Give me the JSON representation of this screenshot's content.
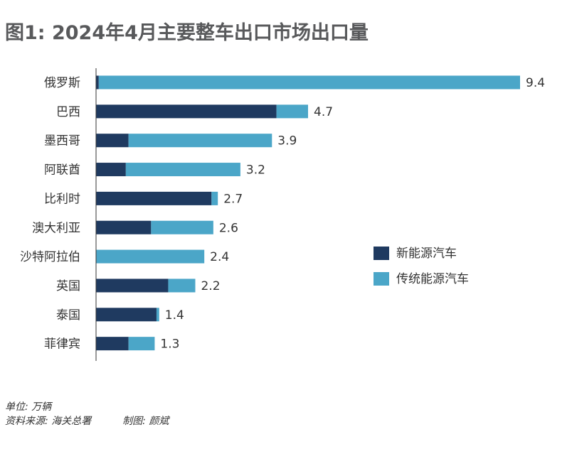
{
  "title": "图1: 2024年4月主要整车出口市场出口量",
  "unit_note": "单位: 万辆",
  "source_note": "资料来源: 海关总署",
  "credit_note": "制图: 颜斌",
  "colors": {
    "nev": "#1f3a60",
    "ice": "#4ba6c8",
    "axis": "#333333"
  },
  "chart_data": {
    "type": "bar",
    "orientation": "horizontal",
    "stacked": true,
    "categories": [
      "俄罗斯",
      "巴西",
      "墨西哥",
      "阿联酋",
      "比利时",
      "澳大利亚",
      "沙特阿拉伯",
      "英国",
      "泰国",
      "菲律宾"
    ],
    "series": [
      {
        "name": "新能源汽车",
        "values": [
          0.06,
          4.0,
          0.72,
          0.66,
          2.56,
          1.22,
          0.0,
          1.6,
          1.34,
          0.72
        ]
      },
      {
        "name": "传统能源汽车",
        "values": [
          9.34,
          0.7,
          3.18,
          2.54,
          0.14,
          1.38,
          2.4,
          0.6,
          0.06,
          0.58
        ]
      }
    ],
    "totals": [
      "9.4",
      "4.7",
      "3.9",
      "3.2",
      "2.7",
      "2.6",
      "2.4",
      "2.2",
      "1.4",
      "1.3"
    ],
    "xlim": [
      0,
      9.4
    ],
    "legend_position": "right-middle"
  }
}
